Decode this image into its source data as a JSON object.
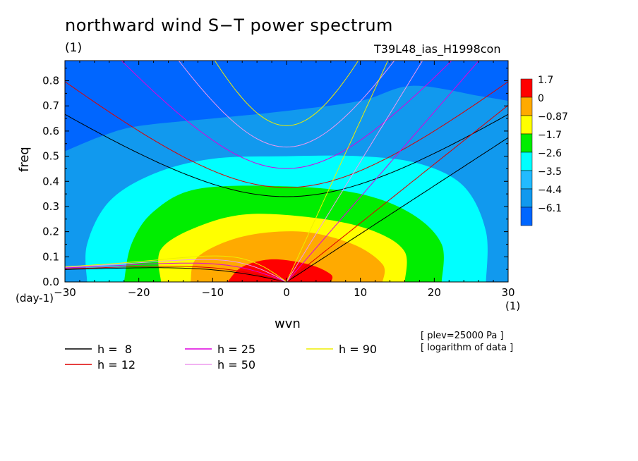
{
  "title": "northward wind S−T power spectrum",
  "subtitle_left": "(1)",
  "subtitle_right": "T39L48_ias_H1998con",
  "notes": [
    "[ plev=25000 Pa ]",
    "[ logarithm of data ]"
  ],
  "colors": {
    "levels": [
      "#0066ff",
      "#1199ee",
      "#22bbff",
      "#00ffff",
      "#00ee00",
      "#ffff00",
      "#ffaa00",
      "#ff0000"
    ],
    "h8": "#000000",
    "h12": "#dd0000",
    "h25": "#dd00dd",
    "h50": "#ee99ee",
    "h90": "#eeee00"
  },
  "chart_data": {
    "type": "heatmap",
    "title": "northward wind S−T power spectrum",
    "xlabel": "wvn",
    "ylabel": "freq",
    "x_unit": "(1)",
    "y_unit": "(day-1)",
    "xlim": [
      -30,
      30
    ],
    "ylim": [
      0,
      0.88
    ],
    "x_ticks": [
      -30,
      -20,
      -10,
      0,
      10,
      20,
      30
    ],
    "x_tick_labels": [
      "−30",
      "−20",
      "−10",
      "0",
      "10",
      "20",
      "30"
    ],
    "y_ticks": [
      0.0,
      0.1,
      0.2,
      0.3,
      0.4,
      0.5,
      0.6,
      0.7,
      0.8
    ],
    "y_tick_labels": [
      "0.0",
      "0.1",
      "0.2",
      "0.3",
      "0.4",
      "0.5",
      "0.6",
      "0.7",
      "0.8"
    ],
    "colorbar_labels": [
      "1.7",
      "0",
      "−0.87",
      "−1.7",
      "−2.6",
      "−3.5",
      "−4.4",
      "−6.1"
    ],
    "contour_regions": [
      {
        "level": "−4.4",
        "boundary": [
          [
            -30,
            0.52
          ],
          [
            -25,
            0.58
          ],
          [
            -20,
            0.62
          ],
          [
            -10,
            0.65
          ],
          [
            0,
            0.68
          ],
          [
            10,
            0.72
          ],
          [
            17,
            0.78
          ],
          [
            26,
            0.74
          ],
          [
            30,
            0.72
          ]
        ]
      },
      {
        "level": "−3.5",
        "boundary": [
          [
            -27,
            0
          ],
          [
            -27,
            0.15
          ],
          [
            -24,
            0.32
          ],
          [
            -18,
            0.43
          ],
          [
            -10,
            0.49
          ],
          [
            0,
            0.5
          ],
          [
            10,
            0.5
          ],
          [
            18,
            0.47
          ],
          [
            24,
            0.38
          ],
          [
            27,
            0.2
          ],
          [
            27,
            0
          ]
        ]
      },
      {
        "level": "−2.6",
        "boundary": [
          [
            -22,
            0
          ],
          [
            -21,
            0.15
          ],
          [
            -18,
            0.28
          ],
          [
            -12,
            0.37
          ],
          [
            0,
            0.38
          ],
          [
            10,
            0.35
          ],
          [
            17,
            0.27
          ],
          [
            21,
            0.15
          ],
          [
            21,
            0
          ]
        ]
      },
      {
        "level": "−1.7",
        "boundary": [
          [
            -17,
            0
          ],
          [
            -17,
            0.13
          ],
          [
            -12,
            0.22
          ],
          [
            -5,
            0.27
          ],
          [
            5,
            0.25
          ],
          [
            12,
            0.2
          ],
          [
            16,
            0.12
          ],
          [
            16,
            0
          ]
        ]
      },
      {
        "level": "−0.87",
        "boundary": [
          [
            -13,
            0
          ],
          [
            -12,
            0.1
          ],
          [
            -6,
            0.18
          ],
          [
            2,
            0.2
          ],
          [
            9,
            0.15
          ],
          [
            13,
            0.07
          ],
          [
            13,
            0
          ]
        ]
      },
      {
        "level": "0",
        "boundary": [
          [
            -8,
            0
          ],
          [
            -6,
            0.06
          ],
          [
            -2,
            0.09
          ],
          [
            3,
            0.07
          ],
          [
            6,
            0.03
          ],
          [
            6,
            0
          ]
        ]
      }
    ],
    "dispersion_curves": [
      {
        "name": "h =  8",
        "color": "#000000"
      },
      {
        "name": "h = 12",
        "color": "#dd0000"
      },
      {
        "name": "h = 25",
        "color": "#dd00dd"
      },
      {
        "name": "h = 50",
        "color": "#ee99ee"
      },
      {
        "name": "h = 90",
        "color": "#eeee00"
      }
    ]
  },
  "legend": [
    {
      "label": "h =  8",
      "color": "#000000"
    },
    {
      "label": "h = 12",
      "color": "#dd0000"
    },
    {
      "label": "h = 25",
      "color": "#dd00dd"
    },
    {
      "label": "h = 50",
      "color": "#ee99ee"
    },
    {
      "label": "h = 90",
      "color": "#eeee00"
    }
  ]
}
